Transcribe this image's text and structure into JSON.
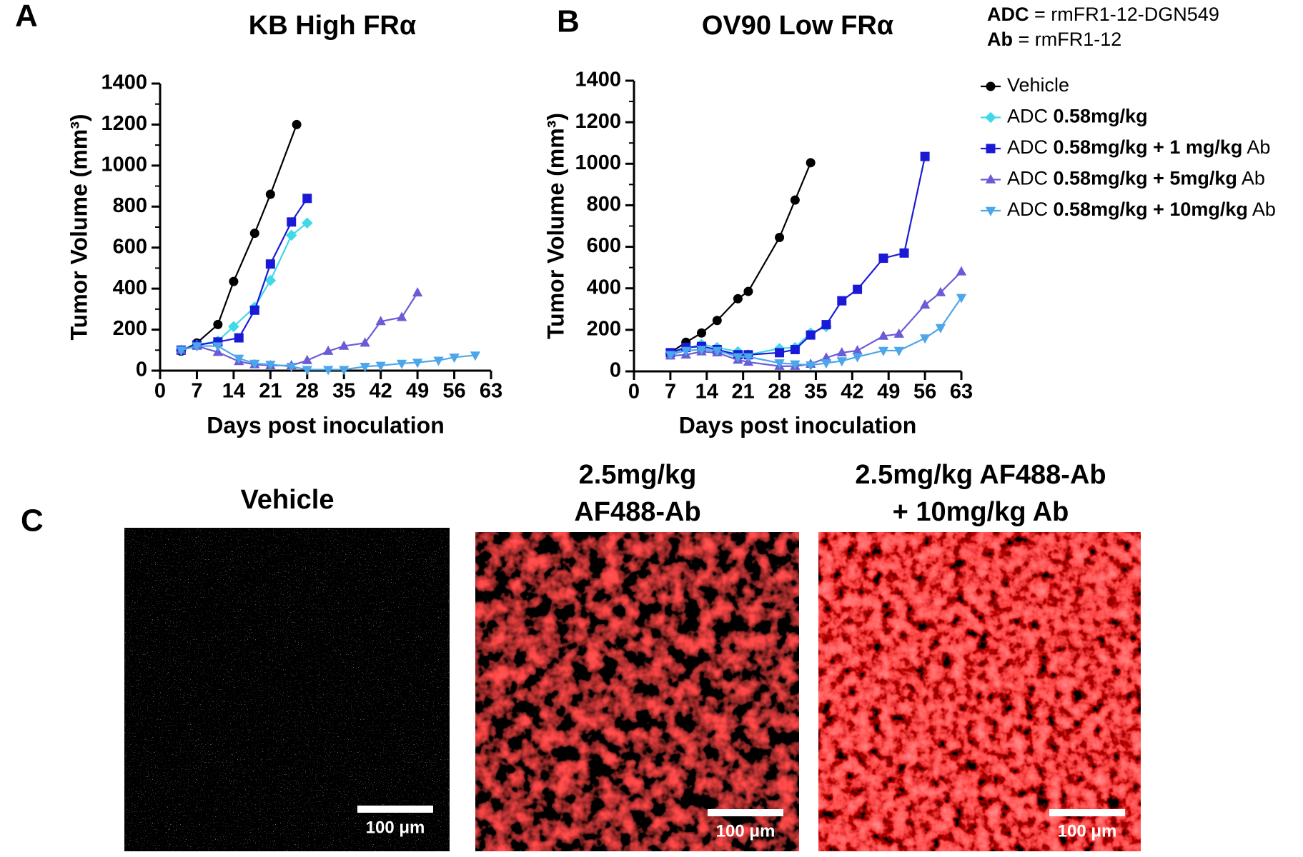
{
  "chart_data": [
    {
      "type": "line",
      "panel": "A",
      "title": "KB High FRα",
      "x_label": "Days post inoculation",
      "y_label": "Tumor Volume (mm³)",
      "xlim": [
        0,
        63
      ],
      "xticks": [
        0,
        7,
        14,
        21,
        28,
        35,
        42,
        49,
        56,
        63
      ],
      "ylim": [
        0,
        1400
      ],
      "yticks": [
        0,
        200,
        400,
        600,
        800,
        1000,
        1200,
        1400
      ],
      "series": [
        {
          "name": "Vehicle",
          "color": "#000000",
          "marker": "circle",
          "x": [
            4,
            7,
            11,
            14,
            18,
            21,
            26
          ],
          "values": [
            95,
            135,
            225,
            435,
            670,
            860,
            1200
          ]
        },
        {
          "name": "ADC 0.58mg/kg",
          "color": "#3fd9e8",
          "marker": "diamond",
          "x": [
            4,
            7,
            11,
            14,
            18,
            21,
            25,
            28
          ],
          "values": [
            100,
            125,
            145,
            215,
            310,
            440,
            660,
            720
          ]
        },
        {
          "name": "ADC 0.58mg/kg + 1 mg/kg Ab",
          "color": "#1a1ad6",
          "marker": "square",
          "x": [
            4,
            7,
            11,
            15,
            18,
            21,
            25,
            28
          ],
          "values": [
            100,
            125,
            140,
            160,
            295,
            520,
            725,
            840
          ]
        },
        {
          "name": "ADC 0.58mg/kg + 5mg/kg Ab",
          "color": "#6a5bd6",
          "marker": "triangle-up",
          "x": [
            4,
            7,
            11,
            15,
            18,
            21,
            25,
            28,
            32,
            35,
            39,
            42,
            46,
            49
          ],
          "values": [
            100,
            120,
            90,
            45,
            30,
            25,
            25,
            50,
            95,
            120,
            135,
            240,
            260,
            380
          ]
        },
        {
          "name": "ADC 0.58mg/kg + 10mg/kg Ab",
          "color": "#4ba6ea",
          "marker": "triangle-down",
          "x": [
            4,
            7,
            11,
            15,
            18,
            21,
            25,
            28,
            32,
            35,
            39,
            42,
            46,
            49,
            53,
            56,
            60
          ],
          "values": [
            100,
            120,
            120,
            60,
            35,
            30,
            20,
            5,
            5,
            5,
            20,
            25,
            35,
            40,
            50,
            65,
            75
          ]
        }
      ]
    },
    {
      "type": "line",
      "panel": "B",
      "title": "OV90 Low FRα",
      "x_label": "Days post inoculation",
      "y_label": "Tumor Volume (mm³)",
      "xlim": [
        0,
        63
      ],
      "xticks": [
        0,
        7,
        14,
        21,
        28,
        35,
        42,
        49,
        56,
        63
      ],
      "ylim": [
        0,
        1400
      ],
      "yticks": [
        0,
        200,
        400,
        600,
        800,
        1000,
        1200,
        1400
      ],
      "legend_header": [
        "ADC = rmFR1-12-DGN549",
        "Ab = rmFR1-12"
      ],
      "series": [
        {
          "name": "Vehicle",
          "color": "#000000",
          "marker": "circle",
          "x": [
            7,
            10,
            13,
            16,
            20,
            22,
            28,
            31,
            34
          ],
          "values": [
            90,
            140,
            185,
            245,
            350,
            385,
            645,
            825,
            1005
          ]
        },
        {
          "name": "ADC 0.58mg/kg",
          "color": "#3fd9e8",
          "marker": "diamond",
          "x": [
            7,
            10,
            13,
            16,
            20,
            22,
            28,
            31,
            34,
            37
          ],
          "values": [
            85,
            110,
            130,
            115,
            95,
            80,
            110,
            115,
            185,
            215
          ]
        },
        {
          "name": "ADC 0.58mg/kg + 1 mg/kg Ab",
          "color": "#1a1ad6",
          "marker": "square",
          "x": [
            7,
            10,
            13,
            16,
            20,
            22,
            28,
            31,
            34,
            37,
            40,
            43,
            48,
            52,
            56
          ],
          "values": [
            90,
            115,
            120,
            105,
            80,
            80,
            90,
            105,
            175,
            225,
            340,
            395,
            545,
            570,
            1035
          ]
        },
        {
          "name": "ADC 0.58mg/kg + 5mg/kg Ab",
          "color": "#6a5bd6",
          "marker": "triangle-up",
          "x": [
            7,
            10,
            13,
            16,
            20,
            22,
            28,
            31,
            34,
            37,
            40,
            43,
            48,
            51,
            56,
            59,
            63
          ],
          "values": [
            75,
            80,
            95,
            90,
            55,
            45,
            25,
            25,
            35,
            65,
            90,
            100,
            170,
            180,
            320,
            380,
            480
          ]
        },
        {
          "name": "ADC 0.58mg/kg + 10mg/kg Ab",
          "color": "#4ba6ea",
          "marker": "triangle-down",
          "x": [
            7,
            10,
            13,
            16,
            20,
            22,
            28,
            31,
            34,
            37,
            40,
            43,
            48,
            51,
            56,
            59,
            63
          ],
          "values": [
            80,
            100,
            105,
            100,
            70,
            70,
            40,
            35,
            30,
            40,
            50,
            70,
            100,
            100,
            160,
            210,
            355
          ]
        }
      ]
    }
  ],
  "panel_c": {
    "label": "C",
    "images": [
      {
        "title": [
          "Vehicle"
        ],
        "scale_bar": "100 μm"
      },
      {
        "title": [
          "2.5mg/kg",
          "AF488-Ab"
        ],
        "scale_bar": "100 μm"
      },
      {
        "title": [
          "2.5mg/kg AF488-Ab",
          "+ 10mg/kg Ab"
        ],
        "scale_bar": "100 μm"
      }
    ]
  }
}
